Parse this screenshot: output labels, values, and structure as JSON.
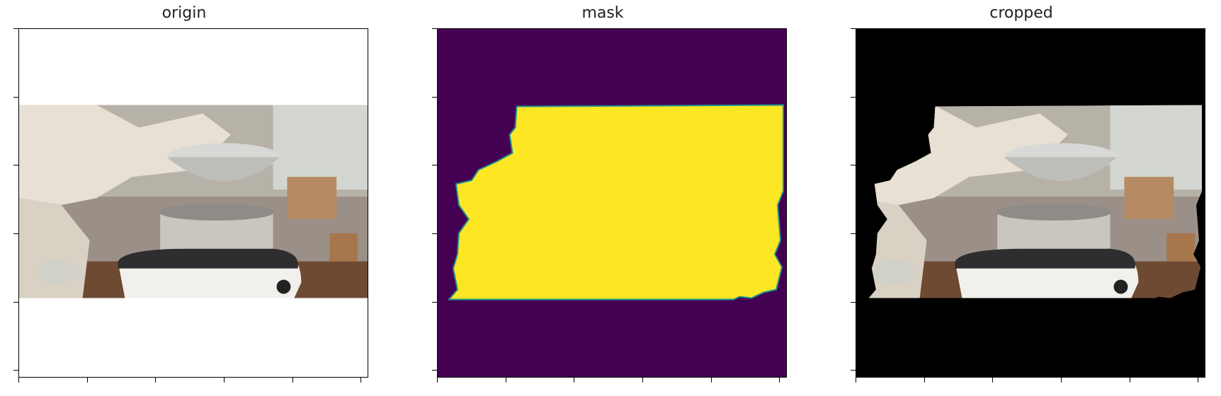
{
  "panels": [
    {
      "id": "origin",
      "title": "origin"
    },
    {
      "id": "mask",
      "title": "mask"
    },
    {
      "id": "cropped",
      "title": "cropped"
    }
  ],
  "colors": {
    "mask_background": "#440154",
    "mask_foreground": "#fde725",
    "mask_edge": "#21918c",
    "cropped_background": "#000000"
  }
}
